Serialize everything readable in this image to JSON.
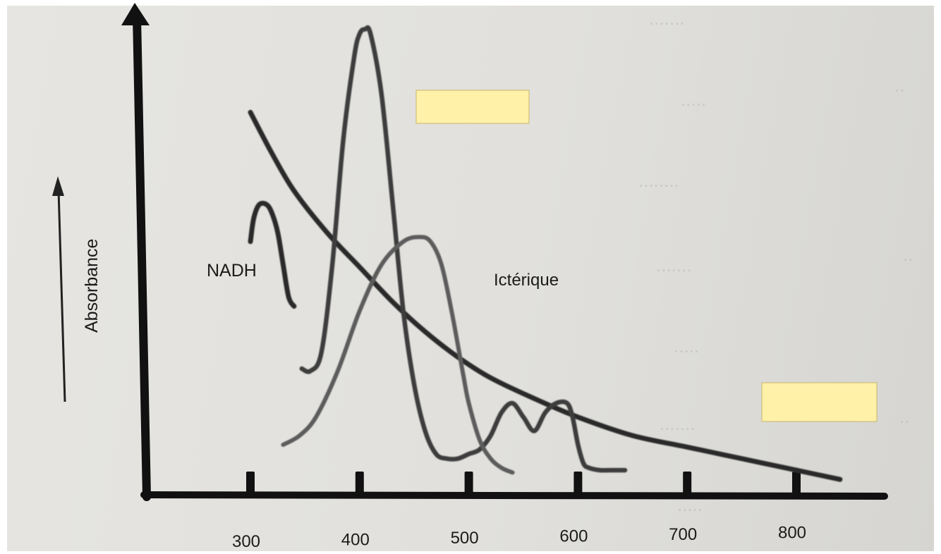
{
  "chart_data": {
    "type": "line",
    "title": "",
    "xlabel": "",
    "ylabel": "Absorbance",
    "xlim": [
      200,
      900
    ],
    "ylim": [
      0,
      100
    ],
    "x_ticks": [
      300,
      400,
      500,
      600,
      700,
      800
    ],
    "grid": false,
    "legend": "none",
    "series": [
      {
        "name": "NADH",
        "color": "#2c2c2c",
        "x": [
          300,
          303,
          308,
          315,
          320,
          325,
          330,
          335,
          340
        ],
        "y": [
          53,
          58,
          61,
          61,
          59,
          55,
          48,
          41,
          39
        ]
      },
      {
        "name": "",
        "color": "#2c2c2c",
        "x": [
          300,
          320,
          340,
          370,
          400,
          430,
          460,
          490,
          520,
          560,
          600,
          650,
          700,
          750,
          800,
          840
        ],
        "y": [
          81,
          72,
          64,
          55,
          47.5,
          40,
          33.5,
          28,
          23.5,
          19,
          15,
          11,
          8.5,
          6,
          3.5,
          1.5
        ]
      },
      {
        "name": "",
        "color": "#3c3c3c",
        "x": [
          347,
          355,
          365,
          375,
          385,
          395,
          400,
          405,
          410,
          420,
          430,
          440,
          450,
          460,
          470,
          480,
          490,
          500,
          510,
          520,
          530,
          540,
          550,
          560,
          570,
          580,
          590,
          595,
          600,
          605,
          610,
          620,
          630,
          643
        ],
        "y": [
          25.5,
          25,
          29,
          48,
          75,
          93,
          98,
          99,
          98,
          85,
          62,
          38,
          22,
          12,
          7,
          6,
          6,
          7,
          8,
          11,
          16,
          18,
          15,
          12,
          16,
          18,
          18,
          15,
          9,
          5,
          4,
          3.5,
          3.5,
          3.5
        ]
      },
      {
        "name": "Ictérique",
        "color": "#5c5c5c",
        "x": [
          330,
          345,
          360,
          380,
          400,
          420,
          440,
          455,
          465,
          475,
          485,
          495,
          500,
          510,
          520,
          530,
          540
        ],
        "y": [
          9,
          11,
          15,
          25,
          38,
          48,
          53,
          54,
          53,
          48,
          37,
          24,
          18,
          10,
          6,
          4,
          3
        ]
      }
    ],
    "annotations": [
      "NADH",
      "Ictérique"
    ]
  }
}
